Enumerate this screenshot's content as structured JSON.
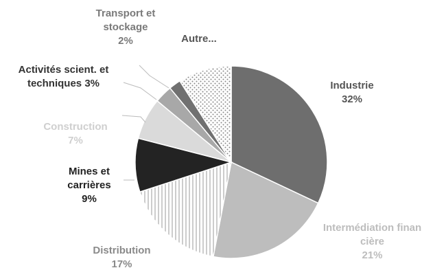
{
  "chart_data": {
    "type": "pie",
    "categories": [
      "Industrie",
      "Intermédiation financière",
      "Distribution",
      "Mines et carrières",
      "Construction",
      "Activités scient. et techniques",
      "Transport et stockage",
      "Autre..."
    ],
    "values": [
      32,
      21,
      17,
      9,
      7,
      3,
      2,
      9
    ],
    "value_labels": [
      "32%",
      "21%",
      "17%",
      "9%",
      "7%",
      "3%",
      "2%",
      null
    ],
    "colors": [
      "#6e6e6e",
      "#bdbdbd",
      "#ffffff",
      "#232323",
      "#dadada",
      "#a8a8a8",
      "#707070",
      "#ffffff"
    ],
    "patterns": [
      null,
      null,
      "vertical-lines",
      null,
      null,
      null,
      null,
      "dots"
    ],
    "label_colors": [
      "#555555",
      "#bdbdbd",
      "#8a8a8a",
      "#222222",
      "#cfcfcf",
      "#333333",
      "#7a7a7a",
      "#555555"
    ]
  }
}
